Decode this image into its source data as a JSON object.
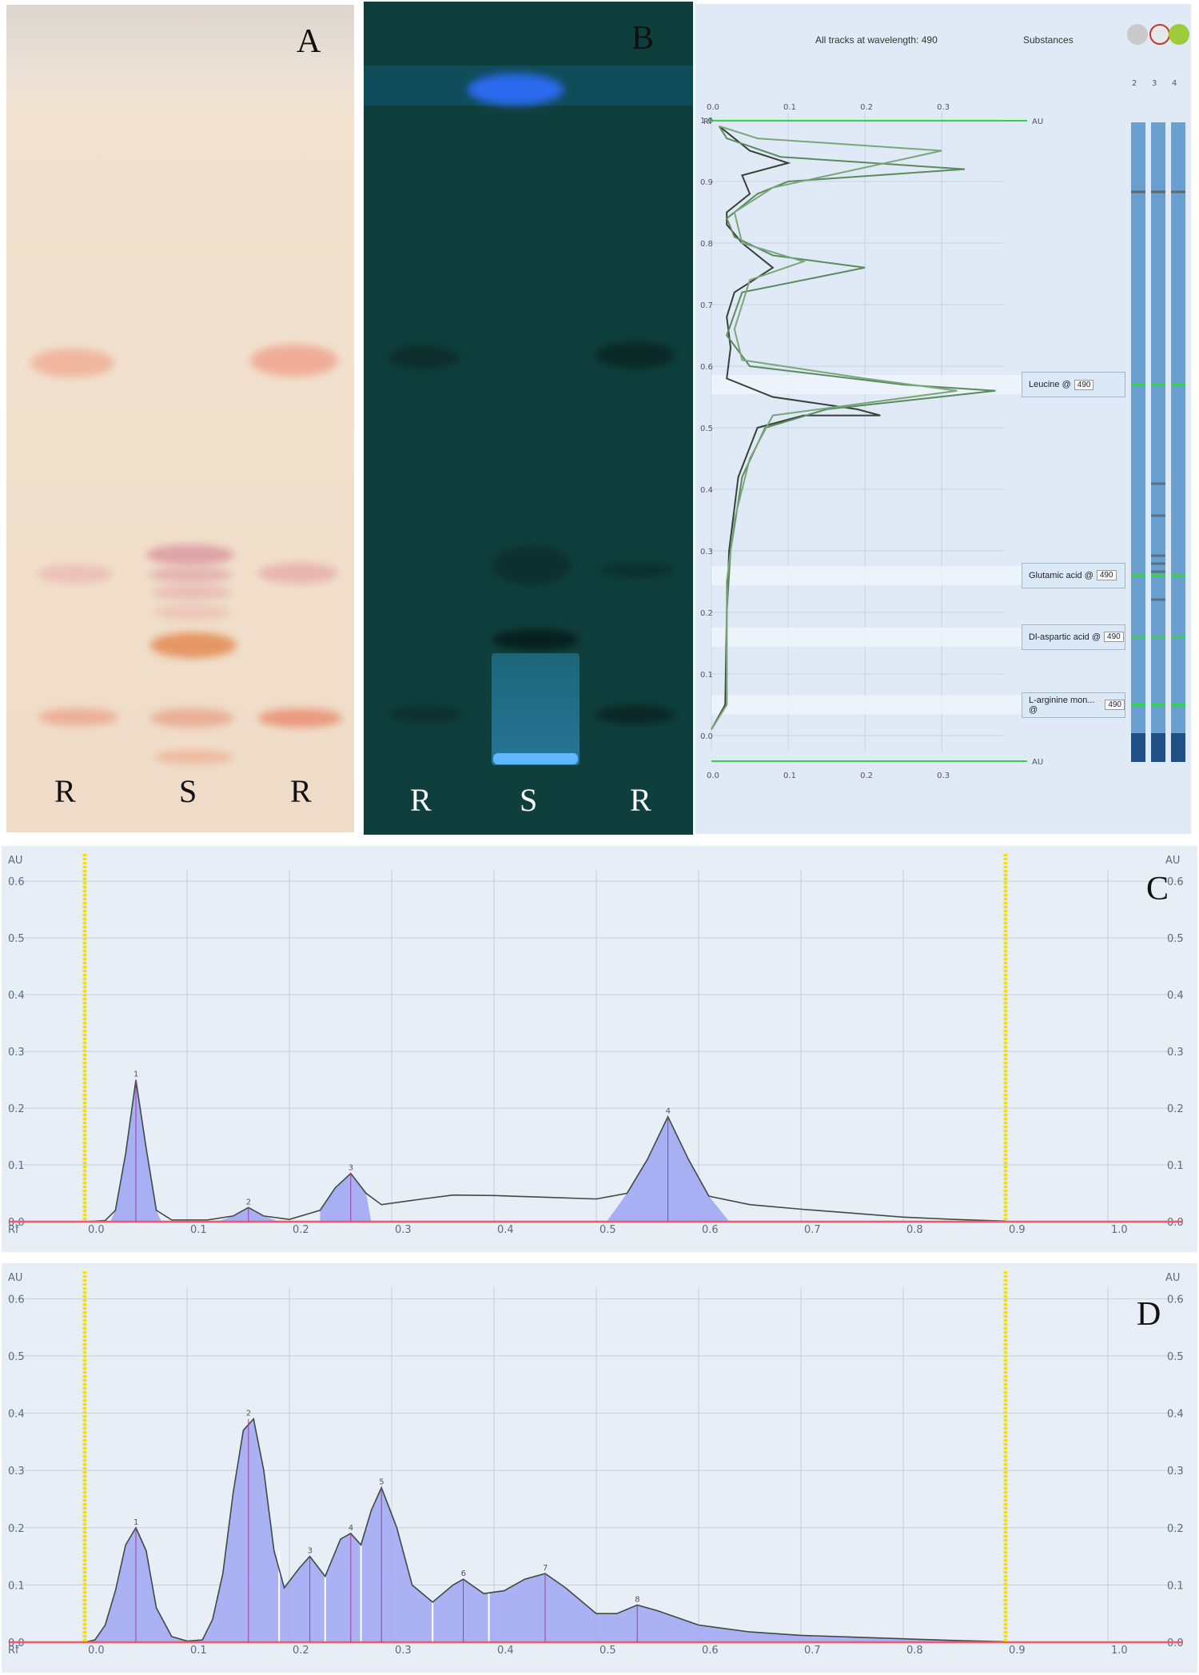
{
  "panels": {
    "A": {
      "letter": "A",
      "lanes": [
        "R",
        "S",
        "R"
      ]
    },
    "B": {
      "letter": "B",
      "lanes": [
        "R",
        "S",
        "R"
      ]
    },
    "C": {
      "letter": "C"
    },
    "D": {
      "letter": "D"
    }
  },
  "densitogram_view": {
    "title": "All tracks at wavelength: 490",
    "substances_header": "Substances",
    "au_label": "AU",
    "rf_label": "Rf",
    "top_ticks": [
      "0.0",
      "0.1",
      "0.2",
      "0.3"
    ],
    "bottom_ticks": [
      "0.0",
      "0.1",
      "0.2",
      "0.3"
    ],
    "rf_ticks": [
      "1.0",
      "0.9",
      "0.8",
      "0.7",
      "0.6",
      "0.5",
      "0.4",
      "0.3",
      "0.2",
      "0.1",
      "0.0"
    ],
    "track_numbers": [
      "2",
      "3",
      "4"
    ],
    "substances": [
      {
        "name": "Leucine @",
        "wavelength": "490",
        "rf": 0.57
      },
      {
        "name": "Glutamic acid @",
        "wavelength": "490",
        "rf": 0.26
      },
      {
        "name": "Dl-aspartic acid @",
        "wavelength": "490",
        "rf": 0.16
      },
      {
        "name": "L-arginine mon... @",
        "wavelength": "490",
        "rf": 0.05
      }
    ]
  },
  "chart_data": [
    {
      "type": "area",
      "panel": "C",
      "ylabel": "AU",
      "xlabel": "Rf",
      "x_ticks": [
        "0.0",
        "0.1",
        "0.2",
        "0.3",
        "0.4",
        "0.5",
        "0.6",
        "0.7",
        "0.8",
        "0.9",
        "1.0"
      ],
      "y_ticks": [
        "0.0",
        "0.1",
        "0.2",
        "0.3",
        "0.4",
        "0.5",
        "0.6"
      ],
      "xlim": [
        -0.05,
        1.05
      ],
      "ylim": [
        0,
        0.62
      ],
      "integration_limits": [
        0.0,
        0.9
      ],
      "peaks": [
        {
          "label": "1",
          "rf": 0.05,
          "height": 0.25,
          "start": 0.025,
          "end": 0.075
        },
        {
          "label": "2",
          "rf": 0.16,
          "height": 0.025,
          "start": 0.13,
          "end": 0.19
        },
        {
          "label": "3",
          "rf": 0.26,
          "height": 0.085,
          "start": 0.23,
          "end": 0.28
        },
        {
          "label": "4",
          "rf": 0.57,
          "height": 0.185,
          "start": 0.51,
          "end": 0.63
        }
      ],
      "trace": [
        [
          0.0,
          0.0
        ],
        [
          0.02,
          0.002
        ],
        [
          0.03,
          0.02
        ],
        [
          0.04,
          0.12
        ],
        [
          0.05,
          0.25
        ],
        [
          0.06,
          0.13
        ],
        [
          0.07,
          0.02
        ],
        [
          0.085,
          0.003
        ],
        [
          0.12,
          0.003
        ],
        [
          0.145,
          0.01
        ],
        [
          0.16,
          0.025
        ],
        [
          0.175,
          0.01
        ],
        [
          0.2,
          0.004
        ],
        [
          0.23,
          0.02
        ],
        [
          0.245,
          0.06
        ],
        [
          0.26,
          0.085
        ],
        [
          0.275,
          0.05
        ],
        [
          0.29,
          0.03
        ],
        [
          0.33,
          0.04
        ],
        [
          0.36,
          0.047
        ],
        [
          0.4,
          0.046
        ],
        [
          0.45,
          0.043
        ],
        [
          0.5,
          0.04
        ],
        [
          0.53,
          0.05
        ],
        [
          0.55,
          0.11
        ],
        [
          0.57,
          0.185
        ],
        [
          0.59,
          0.11
        ],
        [
          0.61,
          0.045
        ],
        [
          0.65,
          0.03
        ],
        [
          0.7,
          0.022
        ],
        [
          0.75,
          0.015
        ],
        [
          0.8,
          0.008
        ],
        [
          0.85,
          0.004
        ],
        [
          0.9,
          0.001
        ]
      ]
    },
    {
      "type": "area",
      "panel": "D",
      "ylabel": "AU",
      "xlabel": "Rf",
      "x_ticks": [
        "0.0",
        "0.1",
        "0.2",
        "0.3",
        "0.4",
        "0.5",
        "0.6",
        "0.7",
        "0.8",
        "0.9",
        "1.0"
      ],
      "y_ticks": [
        "0.0",
        "0.1",
        "0.2",
        "0.3",
        "0.4",
        "0.5",
        "0.6"
      ],
      "xlim": [
        -0.05,
        1.05
      ],
      "ylim": [
        0,
        0.62
      ],
      "integration_limits": [
        0.0,
        0.9
      ],
      "peaks": [
        {
          "label": "1",
          "rf": 0.05,
          "height": 0.2
        },
        {
          "label": "2",
          "rf": 0.16,
          "height": 0.39
        },
        {
          "label": "3",
          "rf": 0.22,
          "height": 0.15
        },
        {
          "label": "4",
          "rf": 0.26,
          "height": 0.19
        },
        {
          "label": "5",
          "rf": 0.29,
          "height": 0.27
        },
        {
          "label": "6",
          "rf": 0.37,
          "height": 0.11
        },
        {
          "label": "7",
          "rf": 0.45,
          "height": 0.12
        },
        {
          "label": "8",
          "rf": 0.54,
          "height": 0.065
        }
      ],
      "separators": [
        0.19,
        0.235,
        0.27,
        0.34,
        0.395
      ],
      "trace": [
        [
          0.0,
          0.0
        ],
        [
          0.01,
          0.004
        ],
        [
          0.02,
          0.03
        ],
        [
          0.03,
          0.09
        ],
        [
          0.04,
          0.17
        ],
        [
          0.05,
          0.2
        ],
        [
          0.06,
          0.16
        ],
        [
          0.07,
          0.06
        ],
        [
          0.085,
          0.01
        ],
        [
          0.1,
          0.002
        ],
        [
          0.115,
          0.004
        ],
        [
          0.125,
          0.04
        ],
        [
          0.135,
          0.12
        ],
        [
          0.145,
          0.26
        ],
        [
          0.155,
          0.37
        ],
        [
          0.165,
          0.39
        ],
        [
          0.175,
          0.3
        ],
        [
          0.185,
          0.16
        ],
        [
          0.195,
          0.095
        ],
        [
          0.21,
          0.13
        ],
        [
          0.22,
          0.15
        ],
        [
          0.235,
          0.115
        ],
        [
          0.25,
          0.18
        ],
        [
          0.26,
          0.19
        ],
        [
          0.27,
          0.17
        ],
        [
          0.28,
          0.23
        ],
        [
          0.29,
          0.27
        ],
        [
          0.305,
          0.2
        ],
        [
          0.32,
          0.1
        ],
        [
          0.34,
          0.07
        ],
        [
          0.36,
          0.1
        ],
        [
          0.37,
          0.11
        ],
        [
          0.39,
          0.085
        ],
        [
          0.41,
          0.09
        ],
        [
          0.43,
          0.11
        ],
        [
          0.45,
          0.12
        ],
        [
          0.47,
          0.095
        ],
        [
          0.5,
          0.05
        ],
        [
          0.52,
          0.05
        ],
        [
          0.54,
          0.065
        ],
        [
          0.56,
          0.055
        ],
        [
          0.6,
          0.03
        ],
        [
          0.65,
          0.018
        ],
        [
          0.7,
          0.012
        ],
        [
          0.75,
          0.009
        ],
        [
          0.8,
          0.006
        ],
        [
          0.85,
          0.003
        ],
        [
          0.9,
          0.001
        ]
      ]
    },
    {
      "type": "line",
      "panel": "B-right",
      "orientation": "vertical-densitogram",
      "xlim": [
        0.0,
        0.38
      ],
      "ylim": [
        0.0,
        1.0
      ],
      "series": [
        {
          "x": [
            [
              0.0,
              0.01
            ],
            [
              0.018,
              0.05
            ],
            [
              0.02,
              0.2
            ],
            [
              0.023,
              0.3
            ],
            [
              0.035,
              0.42
            ],
            [
              0.06,
              0.5
            ],
            [
              0.12,
              0.52
            ],
            [
              0.22,
              0.52
            ],
            [
              0.19,
              0.53
            ],
            [
              0.08,
              0.55
            ],
            [
              0.02,
              0.58
            ],
            [
              0.025,
              0.63
            ],
            [
              0.02,
              0.68
            ],
            [
              0.03,
              0.72
            ],
            [
              0.08,
              0.76
            ],
            [
              0.04,
              0.8
            ],
            [
              0.02,
              0.83
            ],
            [
              0.02,
              0.85
            ],
            [
              0.05,
              0.88
            ],
            [
              0.04,
              0.91
            ],
            [
              0.1,
              0.93
            ],
            [
              0.05,
              0.95
            ],
            [
              0.01,
              0.99
            ]
          ]
        },
        {
          "x": [
            [
              0.0,
              0.01
            ],
            [
              0.02,
              0.05
            ],
            [
              0.02,
              0.2
            ],
            [
              0.025,
              0.3
            ],
            [
              0.04,
              0.42
            ],
            [
              0.07,
              0.5
            ],
            [
              0.15,
              0.53
            ],
            [
              0.37,
              0.56
            ],
            [
              0.25,
              0.57
            ],
            [
              0.05,
              0.6
            ],
            [
              0.02,
              0.65
            ],
            [
              0.04,
              0.72
            ],
            [
              0.2,
              0.76
            ],
            [
              0.08,
              0.78
            ],
            [
              0.03,
              0.81
            ],
            [
              0.02,
              0.84
            ],
            [
              0.06,
              0.88
            ],
            [
              0.1,
              0.9
            ],
            [
              0.33,
              0.92
            ],
            [
              0.09,
              0.94
            ],
            [
              0.02,
              0.97
            ],
            [
              0.01,
              0.99
            ]
          ]
        },
        {
          "x": [
            [
              0.0,
              0.01
            ],
            [
              0.02,
              0.05
            ],
            [
              0.02,
              0.25
            ],
            [
              0.03,
              0.35
            ],
            [
              0.05,
              0.45
            ],
            [
              0.08,
              0.52
            ],
            [
              0.32,
              0.56
            ],
            [
              0.2,
              0.58
            ],
            [
              0.04,
              0.61
            ],
            [
              0.03,
              0.66
            ],
            [
              0.05,
              0.74
            ],
            [
              0.12,
              0.77
            ],
            [
              0.04,
              0.8
            ],
            [
              0.03,
              0.85
            ],
            [
              0.08,
              0.89
            ],
            [
              0.3,
              0.95
            ],
            [
              0.06,
              0.97
            ],
            [
              0.01,
              0.99
            ]
          ]
        }
      ]
    }
  ]
}
